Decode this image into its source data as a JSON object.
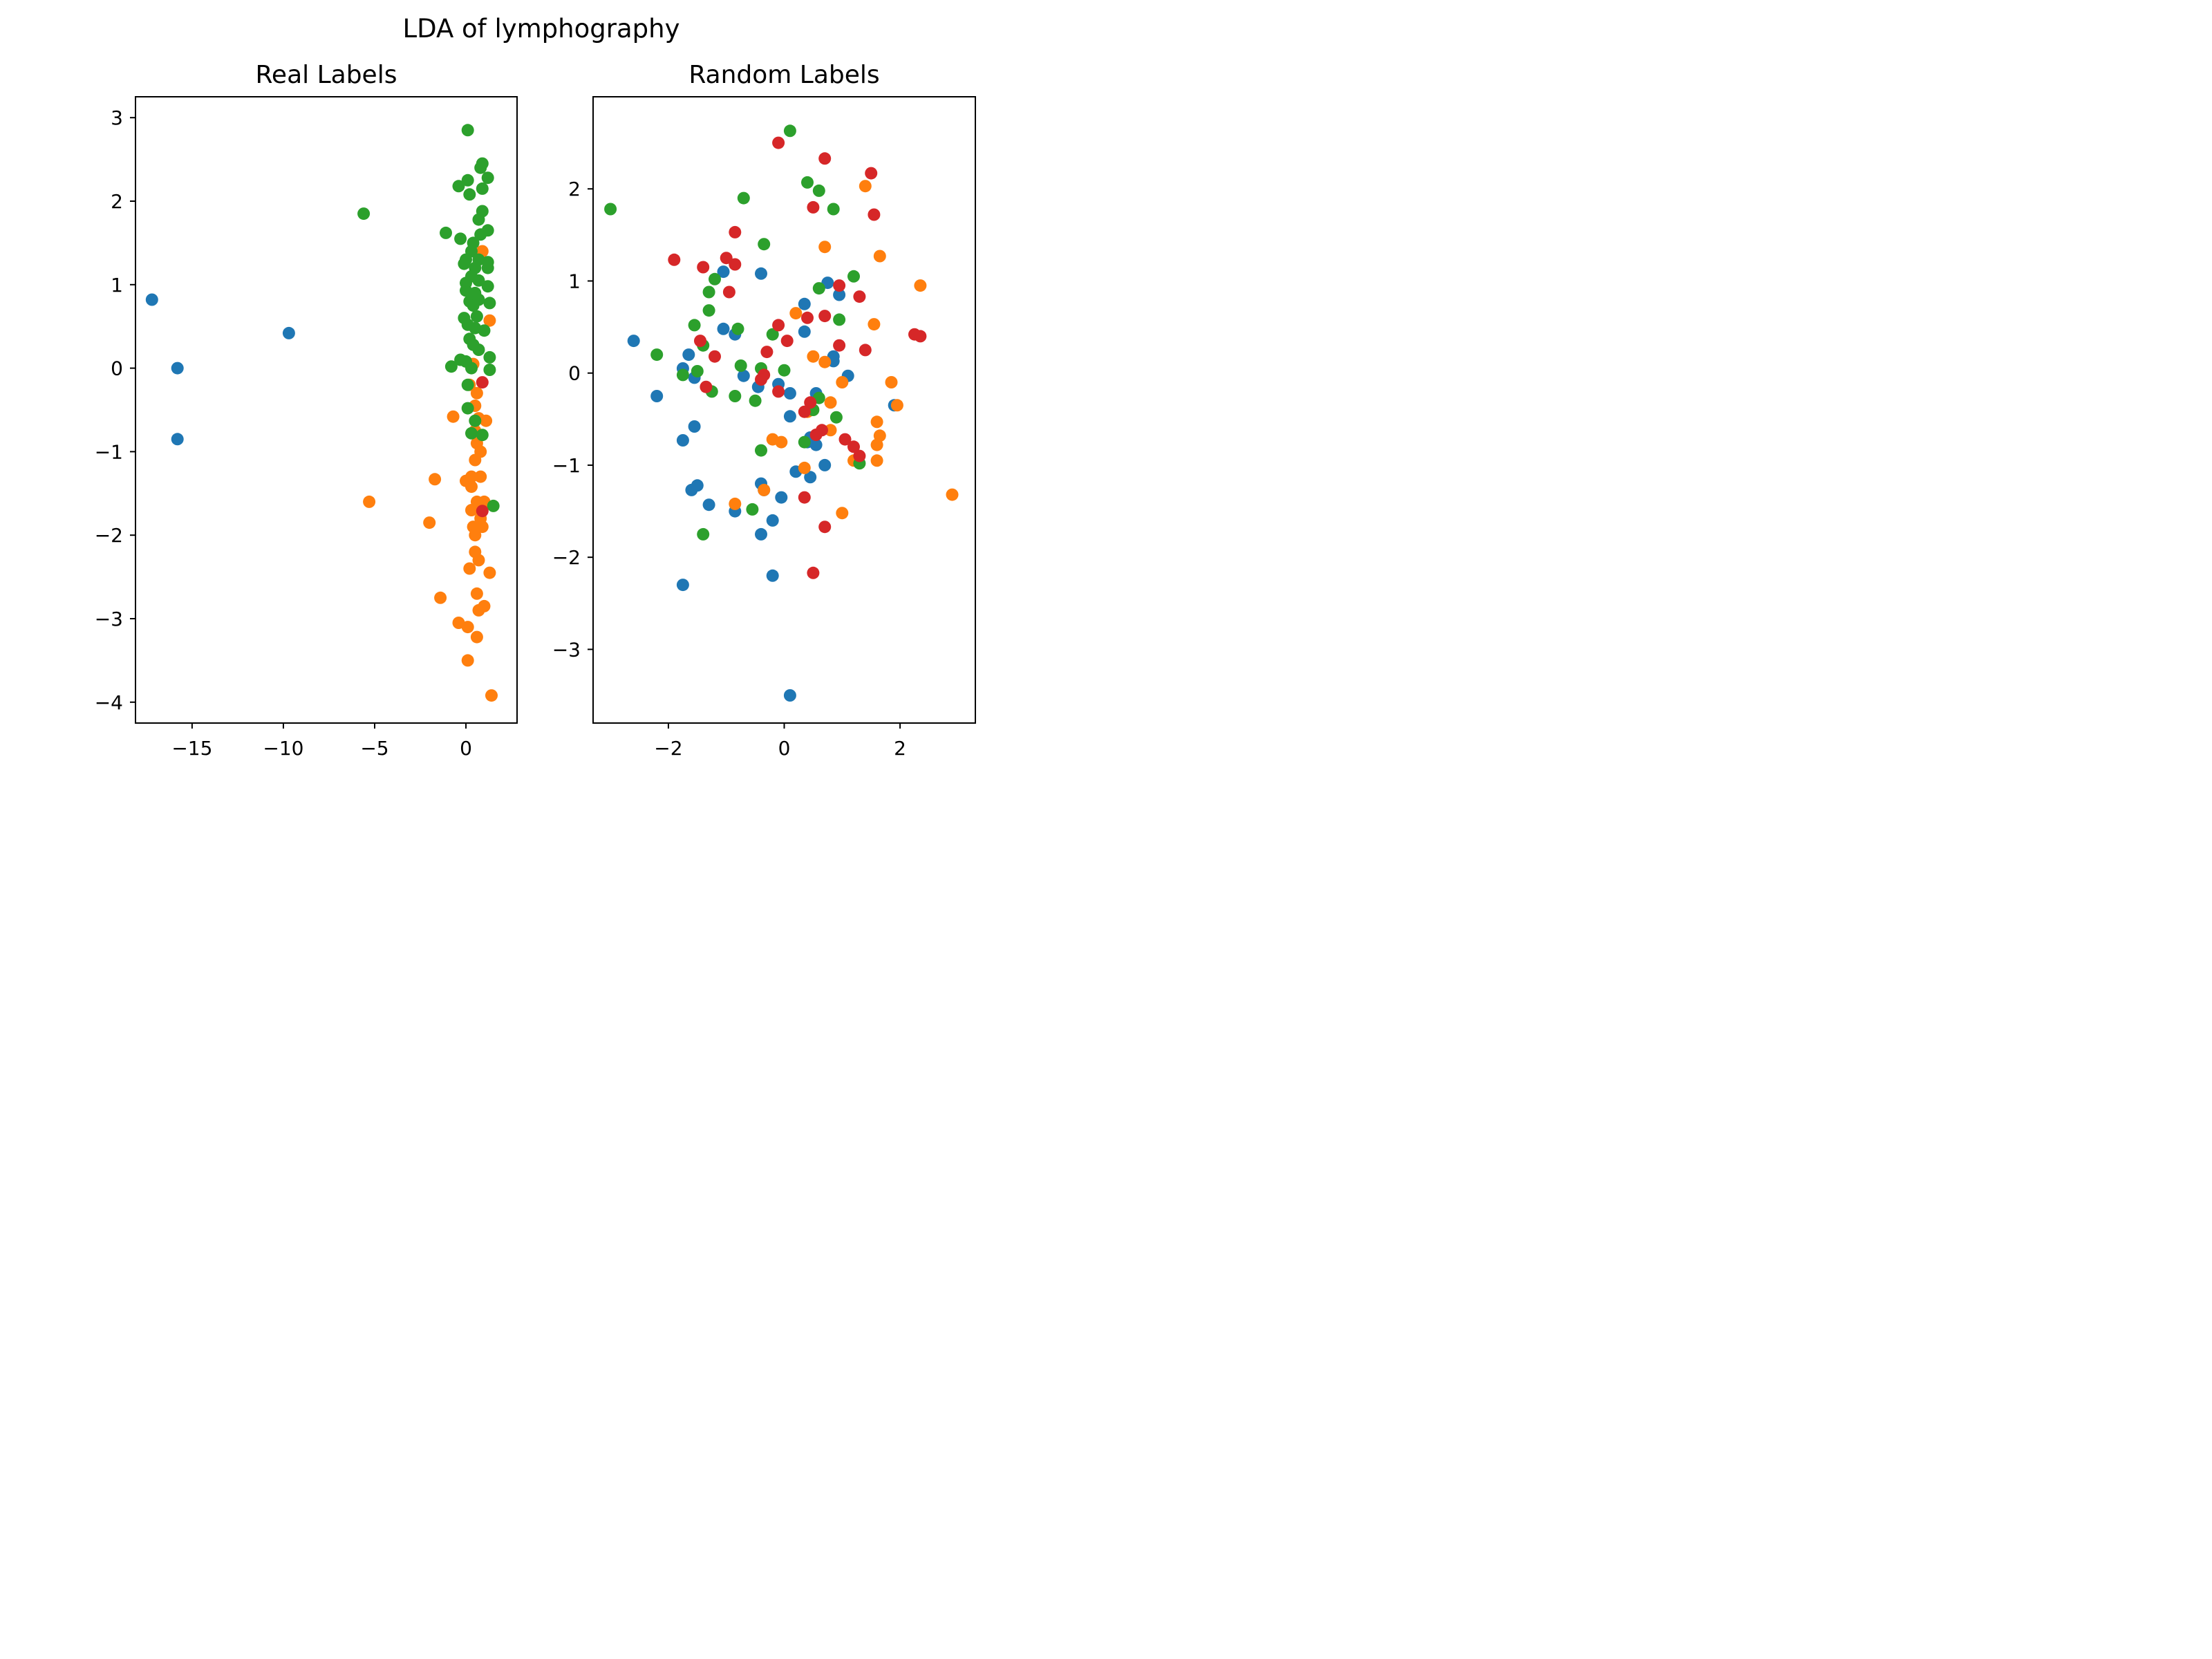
{
  "figure_title": "LDA of lymphography",
  "chart_data": [
    {
      "type": "scatter",
      "title": "Real Labels",
      "xlabel": "",
      "ylabel": "",
      "xlim": [
        -18.1,
        2.8
      ],
      "ylim": [
        -4.25,
        3.25
      ],
      "xticks": [
        -15,
        -10,
        -5,
        0
      ],
      "xtick_labels": [
        "−15",
        "−10",
        "−5",
        "0"
      ],
      "yticks": [
        -4,
        -3,
        -2,
        -1,
        0,
        1,
        2,
        3
      ],
      "ytick_labels": [
        "−4",
        "−3",
        "−2",
        "−1",
        "0",
        "1",
        "2",
        "3"
      ],
      "series": [
        {
          "color": "#1f77b4",
          "points": [
            [
              -17.2,
              0.82
            ],
            [
              -15.8,
              0.0
            ],
            [
              -15.8,
              -0.85
            ],
            [
              -9.7,
              0.42
            ]
          ]
        },
        {
          "color": "#ff7f0e",
          "points": [
            [
              -5.3,
              -1.6
            ],
            [
              -2.0,
              -1.85
            ],
            [
              -1.7,
              -1.33
            ],
            [
              -1.4,
              -2.75
            ],
            [
              -0.7,
              -0.58
            ],
            [
              -0.4,
              -3.05
            ],
            [
              0.0,
              -1.35
            ],
            [
              0.1,
              -3.1
            ],
            [
              0.1,
              -3.5
            ],
            [
              0.2,
              -2.4
            ],
            [
              0.3,
              -1.7
            ],
            [
              0.4,
              -1.9
            ],
            [
              0.5,
              -2.0
            ],
            [
              0.5,
              -2.2
            ],
            [
              0.6,
              -2.7
            ],
            [
              0.6,
              -3.22
            ],
            [
              0.7,
              -2.3
            ],
            [
              0.7,
              -2.9
            ],
            [
              0.8,
              -1.8
            ],
            [
              0.9,
              -1.9
            ],
            [
              1.0,
              -2.85
            ],
            [
              1.0,
              -1.6
            ],
            [
              1.3,
              -2.45
            ],
            [
              1.4,
              -3.92
            ],
            [
              0.3,
              -1.3
            ],
            [
              0.5,
              -1.1
            ],
            [
              0.6,
              -0.9
            ],
            [
              0.8,
              -1.3
            ],
            [
              0.6,
              -0.3
            ],
            [
              0.5,
              -0.45
            ],
            [
              0.7,
              -0.6
            ],
            [
              1.1,
              -0.63
            ],
            [
              0.2,
              -0.2
            ],
            [
              0.4,
              0.05
            ],
            [
              1.3,
              0.57
            ],
            [
              0.9,
              1.4
            ],
            [
              0.3,
              -1.42
            ],
            [
              0.6,
              -1.6
            ],
            [
              0.8,
              -1.0
            ],
            [
              0.5,
              -0.75
            ]
          ]
        },
        {
          "color": "#2ca02c",
          "points": [
            [
              -5.6,
              1.85
            ],
            [
              0.1,
              2.85
            ],
            [
              0.9,
              2.45
            ],
            [
              0.8,
              2.4
            ],
            [
              0.1,
              2.25
            ],
            [
              1.2,
              2.28
            ],
            [
              -0.4,
              2.18
            ],
            [
              0.2,
              2.08
            ],
            [
              0.9,
              2.15
            ],
            [
              0.9,
              1.88
            ],
            [
              0.7,
              1.78
            ],
            [
              -1.1,
              1.62
            ],
            [
              -0.3,
              1.55
            ],
            [
              1.2,
              1.65
            ],
            [
              0.8,
              1.6
            ],
            [
              0.4,
              1.5
            ],
            [
              0.3,
              1.4
            ],
            [
              0.0,
              1.3
            ],
            [
              -0.1,
              1.25
            ],
            [
              0.7,
              1.3
            ],
            [
              1.2,
              1.27
            ],
            [
              1.2,
              1.2
            ],
            [
              0.5,
              1.2
            ],
            [
              0.3,
              1.1
            ],
            [
              0.0,
              1.02
            ],
            [
              0.7,
              1.05
            ],
            [
              1.2,
              0.98
            ],
            [
              0.0,
              0.93
            ],
            [
              0.5,
              0.9
            ],
            [
              0.2,
              0.8
            ],
            [
              0.4,
              0.75
            ],
            [
              0.7,
              0.82
            ],
            [
              1.3,
              0.78
            ],
            [
              0.6,
              0.62
            ],
            [
              -0.1,
              0.6
            ],
            [
              0.1,
              0.52
            ],
            [
              0.5,
              0.48
            ],
            [
              1.0,
              0.45
            ],
            [
              0.2,
              0.35
            ],
            [
              0.4,
              0.28
            ],
            [
              0.7,
              0.22
            ],
            [
              -0.3,
              0.1
            ],
            [
              0.0,
              0.08
            ],
            [
              1.3,
              0.13
            ],
            [
              -0.8,
              0.02
            ],
            [
              0.3,
              0.0
            ],
            [
              1.3,
              -0.02
            ],
            [
              0.1,
              -0.2
            ],
            [
              0.1,
              -0.48
            ],
            [
              0.5,
              -0.63
            ],
            [
              0.3,
              -0.78
            ],
            [
              0.9,
              -0.8
            ],
            [
              1.5,
              -1.65
            ]
          ]
        },
        {
          "color": "#d62728",
          "points": [
            [
              0.9,
              -0.17
            ],
            [
              0.9,
              -1.71
            ]
          ]
        }
      ]
    },
    {
      "type": "scatter",
      "title": "Random Labels",
      "xlabel": "",
      "ylabel": "",
      "xlim": [
        -3.3,
        3.3
      ],
      "ylim": [
        -3.8,
        3.0
      ],
      "xticks": [
        -2,
        0,
        2
      ],
      "xtick_labels": [
        "−2",
        "0",
        "2"
      ],
      "yticks": [
        -3,
        -2,
        -1,
        0,
        1,
        2
      ],
      "ytick_labels": [
        "−3",
        "−2",
        "−1",
        "0",
        "1",
        "2"
      ],
      "series": [
        {
          "color": "#1f77b4",
          "points": [
            [
              -2.6,
              0.35
            ],
            [
              -2.2,
              -0.25
            ],
            [
              -1.75,
              0.05
            ],
            [
              -1.65,
              0.2
            ],
            [
              -1.55,
              -0.05
            ],
            [
              -1.55,
              -0.58
            ],
            [
              -1.75,
              -0.73
            ],
            [
              -1.6,
              -1.27
            ],
            [
              -1.5,
              -1.22
            ],
            [
              -1.3,
              -1.43
            ],
            [
              -1.75,
              -2.3
            ],
            [
              -1.05,
              1.1
            ],
            [
              -1.05,
              0.48
            ],
            [
              -0.85,
              0.42
            ],
            [
              -0.7,
              -0.03
            ],
            [
              -0.85,
              -1.5
            ],
            [
              -0.4,
              1.08
            ],
            [
              -0.45,
              -0.15
            ],
            [
              -0.1,
              -0.12
            ],
            [
              -0.4,
              -1.2
            ],
            [
              -0.35,
              -1.27
            ],
            [
              -0.4,
              -1.75
            ],
            [
              -0.2,
              -1.6
            ],
            [
              -0.2,
              -2.2
            ],
            [
              -0.05,
              -1.35
            ],
            [
              0.1,
              -0.22
            ],
            [
              0.1,
              -0.47
            ],
            [
              0.1,
              -3.5
            ],
            [
              0.2,
              -1.07
            ],
            [
              0.35,
              0.75
            ],
            [
              0.35,
              0.45
            ],
            [
              0.4,
              -0.75
            ],
            [
              0.45,
              -0.7
            ],
            [
              0.45,
              -1.13
            ],
            [
              0.55,
              -0.22
            ],
            [
              0.55,
              -0.78
            ],
            [
              0.7,
              -1.0
            ],
            [
              0.75,
              0.98
            ],
            [
              0.85,
              0.18
            ],
            [
              0.85,
              0.13
            ],
            [
              0.95,
              0.85
            ],
            [
              1.1,
              -0.03
            ],
            [
              1.9,
              -0.35
            ]
          ]
        },
        {
          "color": "#ff7f0e",
          "points": [
            [
              1.4,
              2.03
            ],
            [
              0.7,
              1.37
            ],
            [
              1.65,
              1.27
            ],
            [
              2.35,
              0.95
            ],
            [
              0.2,
              0.65
            ],
            [
              1.55,
              0.53
            ],
            [
              0.5,
              0.18
            ],
            [
              0.7,
              0.12
            ],
            [
              1.0,
              -0.1
            ],
            [
              1.85,
              -0.1
            ],
            [
              1.95,
              -0.35
            ],
            [
              0.8,
              -0.32
            ],
            [
              0.4,
              -0.42
            ],
            [
              1.6,
              -0.53
            ],
            [
              0.8,
              -0.62
            ],
            [
              1.65,
              -0.68
            ],
            [
              1.6,
              -0.78
            ],
            [
              -0.05,
              -0.75
            ],
            [
              -0.2,
              -0.72
            ],
            [
              1.6,
              -0.95
            ],
            [
              1.2,
              -0.95
            ],
            [
              0.35,
              -1.03
            ],
            [
              -0.35,
              -1.27
            ],
            [
              -0.85,
              -1.42
            ],
            [
              1.0,
              -1.52
            ],
            [
              2.9,
              -1.32
            ]
          ]
        },
        {
          "color": "#2ca02c",
          "points": [
            [
              -3.0,
              1.78
            ],
            [
              0.1,
              2.63
            ],
            [
              0.4,
              2.07
            ],
            [
              0.6,
              1.98
            ],
            [
              0.85,
              1.78
            ],
            [
              -0.7,
              1.9
            ],
            [
              -0.35,
              1.4
            ],
            [
              1.2,
              1.05
            ],
            [
              0.6,
              0.92
            ],
            [
              -1.2,
              1.02
            ],
            [
              -1.3,
              0.88
            ],
            [
              -1.3,
              0.68
            ],
            [
              -1.55,
              0.52
            ],
            [
              -1.4,
              0.3
            ],
            [
              -0.8,
              0.48
            ],
            [
              -0.2,
              0.42
            ],
            [
              0.95,
              0.58
            ],
            [
              -2.2,
              0.2
            ],
            [
              -1.5,
              0.02
            ],
            [
              -1.75,
              -0.02
            ],
            [
              -0.75,
              0.08
            ],
            [
              -0.4,
              0.05
            ],
            [
              0.0,
              0.03
            ],
            [
              -1.25,
              -0.2
            ],
            [
              -0.85,
              -0.25
            ],
            [
              -0.5,
              -0.3
            ],
            [
              0.6,
              -0.27
            ],
            [
              0.5,
              -0.4
            ],
            [
              0.9,
              -0.48
            ],
            [
              0.35,
              -0.75
            ],
            [
              -0.4,
              -0.84
            ],
            [
              1.3,
              -0.98
            ],
            [
              -0.55,
              -1.48
            ],
            [
              -1.4,
              -1.75
            ]
          ]
        },
        {
          "color": "#d62728",
          "points": [
            [
              -0.1,
              2.5
            ],
            [
              0.7,
              2.33
            ],
            [
              1.5,
              2.17
            ],
            [
              0.5,
              1.8
            ],
            [
              1.55,
              1.72
            ],
            [
              -0.85,
              1.53
            ],
            [
              -1.9,
              1.23
            ],
            [
              -1.0,
              1.25
            ],
            [
              -0.85,
              1.18
            ],
            [
              -1.4,
              1.15
            ],
            [
              -0.95,
              0.88
            ],
            [
              0.95,
              0.95
            ],
            [
              1.3,
              0.83
            ],
            [
              0.4,
              0.6
            ],
            [
              0.7,
              0.62
            ],
            [
              -0.1,
              0.52
            ],
            [
              0.05,
              0.35
            ],
            [
              -1.45,
              0.35
            ],
            [
              0.95,
              0.3
            ],
            [
              -0.3,
              0.23
            ],
            [
              1.4,
              0.25
            ],
            [
              2.25,
              0.42
            ],
            [
              2.35,
              0.4
            ],
            [
              -1.2,
              0.18
            ],
            [
              -0.35,
              -0.02
            ],
            [
              -0.4,
              -0.07
            ],
            [
              -1.35,
              -0.15
            ],
            [
              -0.1,
              -0.2
            ],
            [
              0.45,
              -0.32
            ],
            [
              0.35,
              -0.42
            ],
            [
              0.65,
              -0.62
            ],
            [
              0.55,
              -0.67
            ],
            [
              1.05,
              -0.72
            ],
            [
              1.2,
              -0.8
            ],
            [
              1.3,
              -0.9
            ],
            [
              0.35,
              -1.35
            ],
            [
              0.7,
              -1.67
            ],
            [
              0.5,
              -2.17
            ]
          ]
        }
      ]
    }
  ]
}
